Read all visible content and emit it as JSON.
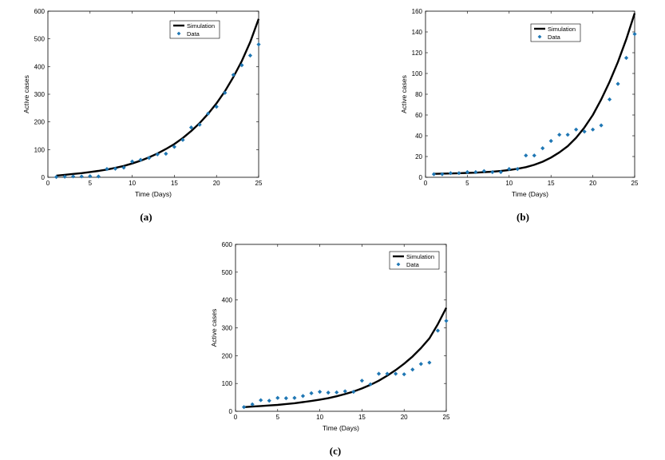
{
  "chart_data": [
    {
      "type": "line+scatter",
      "caption": "(a)",
      "xlabel": "Time (Days)",
      "ylabel": "Active cases",
      "xlim": [
        0,
        25
      ],
      "ylim": [
        0,
        600
      ],
      "xticks": [
        "0",
        "5",
        "10",
        "15",
        "20",
        "25"
      ],
      "yticks": [
        "0",
        "100",
        "200",
        "300",
        "400",
        "500",
        "600"
      ],
      "legend": {
        "position": "top-right",
        "entries": [
          "Simulation",
          "Data"
        ]
      },
      "series": [
        {
          "name": "Simulation",
          "kind": "line",
          "color": "#000000",
          "x": [
            1,
            2,
            3,
            4,
            5,
            6,
            7,
            8,
            9,
            10,
            11,
            12,
            13,
            14,
            15,
            16,
            17,
            18,
            19,
            20,
            21,
            22,
            23,
            24,
            25
          ],
          "values": [
            6,
            9,
            12,
            15,
            19,
            23,
            28,
            34,
            41,
            50,
            60,
            72,
            86,
            102,
            120,
            142,
            167,
            196,
            229,
            267,
            311,
            362,
            420,
            488,
            572
          ]
        },
        {
          "name": "Data",
          "kind": "scatter",
          "color": "#1f77b4",
          "x": [
            1,
            2,
            3,
            4,
            5,
            6,
            7,
            8,
            9,
            10,
            11,
            12,
            13,
            14,
            15,
            16,
            17,
            18,
            19,
            20,
            21,
            22,
            23,
            24,
            25
          ],
          "values": [
            1,
            2,
            3,
            3,
            4,
            3,
            30,
            31,
            35,
            57,
            63,
            70,
            83,
            85,
            110,
            135,
            180,
            190,
            230,
            255,
            305,
            370,
            405,
            440,
            480
          ]
        }
      ]
    },
    {
      "type": "line+scatter",
      "caption": "(b)",
      "xlabel": "Time (Days)",
      "ylabel": "Active cases",
      "xlim": [
        0,
        25
      ],
      "ylim": [
        0,
        160
      ],
      "xticks": [
        "0",
        "5",
        "10",
        "15",
        "20",
        "25"
      ],
      "yticks": [
        "0",
        "20",
        "40",
        "60",
        "80",
        "100",
        "120",
        "140",
        "160"
      ],
      "legend": {
        "position": "top-right",
        "entries": [
          "Simulation",
          "Data"
        ]
      },
      "series": [
        {
          "name": "Simulation",
          "kind": "line",
          "color": "#000000",
          "x": [
            1,
            2,
            3,
            4,
            5,
            6,
            7,
            8,
            9,
            10,
            11,
            12,
            13,
            14,
            15,
            16,
            17,
            18,
            19,
            20,
            21,
            22,
            23,
            24,
            25
          ],
          "values": [
            3.3,
            3.5,
            3.7,
            3.9,
            4.2,
            4.5,
            4.9,
            5.4,
            6.1,
            7.0,
            8.2,
            9.8,
            12,
            15,
            19,
            24,
            30,
            38,
            48,
            60,
            75,
            92,
            111,
            133,
            158
          ]
        },
        {
          "name": "Data",
          "kind": "scatter",
          "color": "#1f77b4",
          "x": [
            1,
            2,
            3,
            4,
            5,
            6,
            7,
            8,
            9,
            10,
            11,
            12,
            13,
            14,
            15,
            16,
            17,
            18,
            19,
            20,
            21,
            22,
            23,
            24,
            25
          ],
          "values": [
            3,
            3,
            4,
            4,
            5,
            5,
            6,
            5,
            5,
            8,
            8,
            21,
            21,
            28,
            35,
            41,
            41,
            46,
            44,
            46,
            50,
            75,
            90,
            115,
            138
          ]
        }
      ]
    },
    {
      "type": "line+scatter",
      "caption": "(c)",
      "xlabel": "Time (Days)",
      "ylabel": "Active cases",
      "xlim": [
        0,
        25
      ],
      "ylim": [
        0,
        600
      ],
      "xticks": [
        "0",
        "5",
        "10",
        "15",
        "20",
        "25"
      ],
      "yticks": [
        "0",
        "100",
        "200",
        "300",
        "400",
        "500",
        "600"
      ],
      "legend": {
        "position": "top-right",
        "entries": [
          "Simulation",
          "Data"
        ]
      },
      "series": [
        {
          "name": "Simulation",
          "kind": "line",
          "color": "#000000",
          "x": [
            1,
            2,
            3,
            4,
            5,
            6,
            7,
            8,
            9,
            10,
            11,
            12,
            13,
            14,
            15,
            16,
            17,
            18,
            19,
            20,
            21,
            22,
            23,
            24,
            25
          ],
          "values": [
            15,
            17,
            19,
            21,
            23,
            26,
            29,
            33,
            37,
            42,
            47,
            54,
            62,
            71,
            82,
            95,
            110,
            128,
            148,
            171,
            197,
            227,
            262,
            313,
            372
          ]
        },
        {
          "name": "Data",
          "kind": "scatter",
          "color": "#1f77b4",
          "x": [
            1,
            2,
            3,
            4,
            5,
            6,
            7,
            8,
            9,
            10,
            11,
            12,
            13,
            14,
            15,
            16,
            17,
            18,
            19,
            20,
            21,
            22,
            23,
            24,
            25
          ],
          "values": [
            15,
            25,
            40,
            38,
            48,
            47,
            48,
            55,
            65,
            70,
            67,
            68,
            72,
            70,
            110,
            97,
            135,
            135,
            135,
            133,
            150,
            170,
            175,
            290,
            325
          ]
        }
      ]
    }
  ]
}
